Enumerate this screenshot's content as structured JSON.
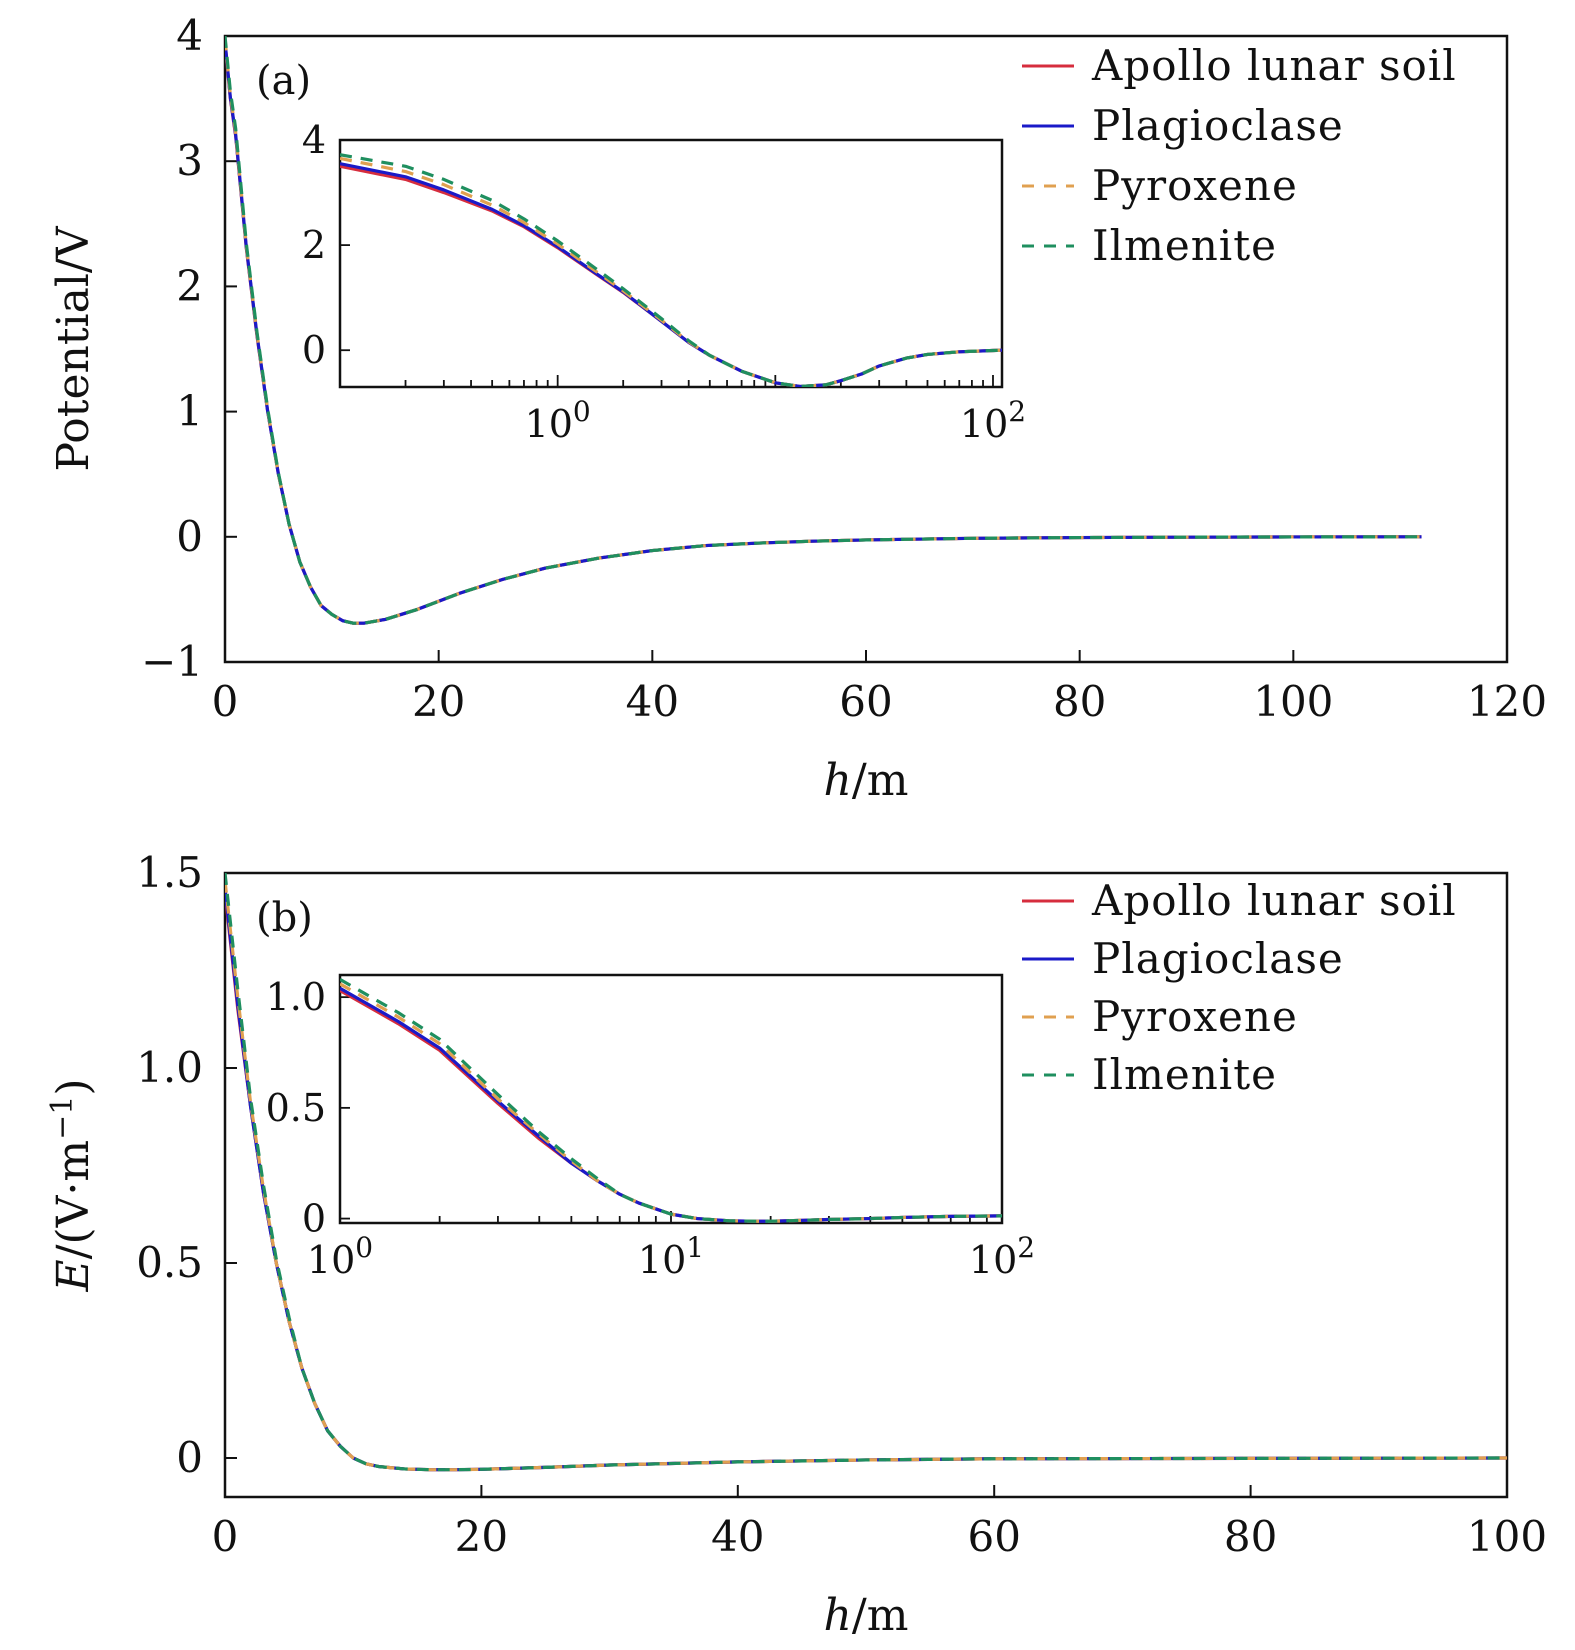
{
  "chart_data": [
    {
      "panel": "(a)",
      "type": "line",
      "xlabel_italic": "h",
      "xlabel_rest": "/m",
      "ylabel": "Potential/V",
      "xlim": [
        0,
        120
      ],
      "ylim": [
        -1,
        4
      ],
      "xticks": [
        0,
        20,
        40,
        60,
        80,
        100,
        120
      ],
      "yticks": [
        -1,
        0,
        1,
        2,
        3,
        4
      ],
      "xtick_labels": [
        "0",
        "20",
        "40",
        "60",
        "80",
        "100",
        "120"
      ],
      "ytick_labels": [
        "−1",
        "0",
        "1",
        "2",
        "3",
        "4"
      ],
      "legend_position": "top-right",
      "series": [
        {
          "name": "Apollo lunar soil",
          "color": "#d62d3d",
          "style": "solid",
          "x": [
            0,
            0.5,
            1,
            2,
            3,
            4,
            5,
            6,
            7,
            8,
            9,
            10,
            11,
            12,
            13,
            15,
            18,
            22,
            26,
            30,
            35,
            40,
            45,
            50,
            55,
            60,
            70,
            80,
            90,
            100,
            112
          ],
          "y": [
            3.95,
            3.5,
            3.2,
            2.3,
            1.6,
            1.0,
            0.5,
            0.1,
            -0.2,
            -0.4,
            -0.55,
            -0.62,
            -0.67,
            -0.69,
            -0.69,
            -0.66,
            -0.58,
            -0.45,
            -0.34,
            -0.25,
            -0.17,
            -0.11,
            -0.07,
            -0.05,
            -0.035,
            -0.025,
            -0.012,
            -0.006,
            -0.003,
            -0.001,
            0
          ]
        },
        {
          "name": "Plagioclase",
          "color": "#1a1ac8",
          "style": "solid",
          "x": [
            0,
            0.5,
            1,
            2,
            3,
            4,
            5,
            6,
            7,
            8,
            9,
            10,
            11,
            12,
            13,
            15,
            18,
            22,
            26,
            30,
            35,
            40,
            45,
            50,
            55,
            60,
            70,
            80,
            90,
            100,
            112
          ],
          "y": [
            3.96,
            3.51,
            3.21,
            2.31,
            1.61,
            1.0,
            0.5,
            0.1,
            -0.2,
            -0.4,
            -0.55,
            -0.62,
            -0.67,
            -0.69,
            -0.69,
            -0.66,
            -0.58,
            -0.45,
            -0.34,
            -0.25,
            -0.17,
            -0.11,
            -0.07,
            -0.05,
            -0.035,
            -0.025,
            -0.012,
            -0.006,
            -0.003,
            -0.001,
            0
          ]
        },
        {
          "name": "Pyroxene",
          "color": "#e0a050",
          "style": "dashed",
          "x": [
            0,
            0.5,
            1,
            2,
            3,
            4,
            5,
            6,
            7,
            8,
            9,
            10,
            11,
            12,
            13,
            15,
            18,
            22,
            26,
            30,
            35,
            40,
            45,
            50,
            55,
            60,
            70,
            80,
            90,
            100,
            112
          ],
          "y": [
            3.98,
            3.53,
            3.23,
            2.32,
            1.62,
            1.01,
            0.5,
            0.1,
            -0.2,
            -0.4,
            -0.55,
            -0.62,
            -0.67,
            -0.69,
            -0.69,
            -0.66,
            -0.58,
            -0.45,
            -0.34,
            -0.25,
            -0.17,
            -0.11,
            -0.07,
            -0.05,
            -0.035,
            -0.025,
            -0.012,
            -0.006,
            -0.003,
            -0.001,
            0
          ]
        },
        {
          "name": "Ilmenite",
          "color": "#1f8f5f",
          "style": "dashed",
          "x": [
            0,
            0.5,
            1,
            2,
            3,
            4,
            5,
            6,
            7,
            8,
            9,
            10,
            11,
            12,
            13,
            15,
            18,
            22,
            26,
            30,
            35,
            40,
            45,
            50,
            55,
            60,
            70,
            80,
            90,
            100,
            112
          ],
          "y": [
            4.0,
            3.56,
            3.26,
            2.34,
            1.63,
            1.02,
            0.51,
            0.1,
            -0.2,
            -0.4,
            -0.55,
            -0.62,
            -0.67,
            -0.69,
            -0.69,
            -0.66,
            -0.58,
            -0.45,
            -0.34,
            -0.25,
            -0.17,
            -0.11,
            -0.07,
            -0.05,
            -0.035,
            -0.025,
            -0.012,
            -0.006,
            -0.003,
            -0.001,
            0
          ]
        }
      ],
      "inset": {
        "xscale": "log",
        "xlim": [
          0.1,
          110
        ],
        "ylim": [
          -0.7,
          4
        ],
        "xticks": [
          1,
          100
        ],
        "xtick_base": [
          "10",
          "10"
        ],
        "xtick_exp": [
          "0",
          "2"
        ],
        "yticks": [
          0,
          2,
          4
        ],
        "ytick_labels": [
          "0",
          "2",
          "4"
        ],
        "series": [
          {
            "name": "Apollo lunar soil",
            "color": "#d62d3d",
            "style": "solid",
            "x": [
              0.1,
              0.2,
              0.3,
              0.5,
              0.7,
              1,
              1.5,
              2,
              3,
              4,
              5,
              7,
              10,
              13,
              17,
              20,
              25,
              30,
              40,
              50,
              70,
              100,
              110
            ],
            "y": [
              3.5,
              3.25,
              3.0,
              2.65,
              2.35,
              1.95,
              1.45,
              1.1,
              0.55,
              0.15,
              -0.1,
              -0.4,
              -0.62,
              -0.69,
              -0.66,
              -0.58,
              -0.45,
              -0.3,
              -0.15,
              -0.08,
              -0.03,
              -0.005,
              0
            ]
          },
          {
            "name": "Plagioclase",
            "color": "#1a1ac8",
            "style": "solid",
            "x": [
              0.1,
              0.2,
              0.3,
              0.5,
              0.7,
              1,
              1.5,
              2,
              3,
              4,
              5,
              7,
              10,
              13,
              17,
              20,
              25,
              30,
              40,
              50,
              70,
              100,
              110
            ],
            "y": [
              3.55,
              3.3,
              3.05,
              2.68,
              2.37,
              1.97,
              1.46,
              1.11,
              0.55,
              0.15,
              -0.1,
              -0.4,
              -0.62,
              -0.69,
              -0.66,
              -0.58,
              -0.45,
              -0.3,
              -0.15,
              -0.08,
              -0.03,
              -0.005,
              0
            ]
          },
          {
            "name": "Pyroxene",
            "color": "#e0a050",
            "style": "dashed",
            "x": [
              0.1,
              0.2,
              0.3,
              0.5,
              0.7,
              1,
              1.5,
              2,
              3,
              4,
              5,
              7,
              10,
              13,
              17,
              20,
              25,
              30,
              40,
              50,
              70,
              100,
              110
            ],
            "y": [
              3.65,
              3.4,
              3.15,
              2.76,
              2.43,
              2.02,
              1.5,
              1.13,
              0.57,
              0.16,
              -0.1,
              -0.4,
              -0.62,
              -0.69,
              -0.66,
              -0.58,
              -0.45,
              -0.3,
              -0.15,
              -0.08,
              -0.03,
              -0.005,
              0
            ]
          },
          {
            "name": "Ilmenite",
            "color": "#1f8f5f",
            "style": "dashed",
            "x": [
              0.1,
              0.2,
              0.3,
              0.5,
              0.7,
              1,
              1.5,
              2,
              3,
              4,
              5,
              7,
              10,
              13,
              17,
              20,
              25,
              30,
              40,
              50,
              70,
              100,
              110
            ],
            "y": [
              3.72,
              3.5,
              3.25,
              2.85,
              2.5,
              2.08,
              1.55,
              1.17,
              0.6,
              0.18,
              -0.1,
              -0.4,
              -0.62,
              -0.69,
              -0.66,
              -0.58,
              -0.45,
              -0.3,
              -0.15,
              -0.08,
              -0.03,
              -0.005,
              0
            ]
          }
        ]
      }
    },
    {
      "panel": "(b)",
      "type": "line",
      "xlabel_italic": "h",
      "xlabel_rest": "/m",
      "ylabel_italic": "E",
      "ylabel_rest": "/(V·m",
      "ylabel_sup": "−1",
      "ylabel_close": ")",
      "xlim": [
        0,
        100
      ],
      "ylim": [
        -0.1,
        1.5
      ],
      "xticks": [
        0,
        20,
        40,
        60,
        80,
        100
      ],
      "yticks": [
        0,
        0.5,
        1.0,
        1.5
      ],
      "xtick_labels": [
        "0",
        "20",
        "40",
        "60",
        "80",
        "100"
      ],
      "ytick_labels": [
        "0",
        "0.5",
        "1.0",
        "1.5"
      ],
      "legend_position": "top-right",
      "series": [
        {
          "name": "Apollo lunar soil",
          "color": "#d62d3d",
          "style": "solid",
          "x": [
            0,
            0.5,
            1,
            2,
            3,
            4,
            5,
            6,
            7,
            8,
            9,
            10,
            11,
            12,
            14,
            16,
            18,
            20,
            25,
            30,
            40,
            50,
            60,
            80,
            100
          ],
          "y": [
            1.45,
            1.3,
            1.15,
            0.9,
            0.68,
            0.5,
            0.35,
            0.23,
            0.14,
            0.07,
            0.03,
            0.0,
            -0.015,
            -0.022,
            -0.028,
            -0.03,
            -0.03,
            -0.029,
            -0.024,
            -0.018,
            -0.01,
            -0.005,
            -0.002,
            -0.001,
            0
          ]
        },
        {
          "name": "Plagioclase",
          "color": "#1a1ac8",
          "style": "solid",
          "x": [
            0,
            0.5,
            1,
            2,
            3,
            4,
            5,
            6,
            7,
            8,
            9,
            10,
            11,
            12,
            14,
            16,
            18,
            20,
            25,
            30,
            40,
            50,
            60,
            80,
            100
          ],
          "y": [
            1.46,
            1.31,
            1.16,
            0.9,
            0.68,
            0.5,
            0.35,
            0.23,
            0.14,
            0.07,
            0.03,
            0.0,
            -0.015,
            -0.022,
            -0.028,
            -0.03,
            -0.03,
            -0.029,
            -0.024,
            -0.018,
            -0.01,
            -0.005,
            -0.002,
            -0.001,
            0
          ]
        },
        {
          "name": "Pyroxene",
          "color": "#e0a050",
          "style": "dashed",
          "x": [
            0,
            0.5,
            1,
            2,
            3,
            4,
            5,
            6,
            7,
            8,
            9,
            10,
            11,
            12,
            14,
            16,
            18,
            20,
            25,
            30,
            40,
            50,
            60,
            80,
            100
          ],
          "y": [
            1.48,
            1.33,
            1.18,
            0.91,
            0.69,
            0.5,
            0.35,
            0.23,
            0.14,
            0.07,
            0.03,
            0.0,
            -0.015,
            -0.022,
            -0.028,
            -0.03,
            -0.03,
            -0.029,
            -0.024,
            -0.018,
            -0.01,
            -0.005,
            -0.002,
            -0.001,
            0
          ]
        },
        {
          "name": "Ilmenite",
          "color": "#1f8f5f",
          "style": "dashed",
          "x": [
            0,
            0.5,
            1,
            2,
            3,
            4,
            5,
            6,
            7,
            8,
            9,
            10,
            11,
            12,
            14,
            16,
            18,
            20,
            25,
            30,
            40,
            50,
            60,
            80,
            100
          ],
          "y": [
            1.5,
            1.35,
            1.2,
            0.92,
            0.7,
            0.51,
            0.36,
            0.23,
            0.14,
            0.07,
            0.03,
            0.0,
            -0.015,
            -0.022,
            -0.028,
            -0.03,
            -0.03,
            -0.029,
            -0.024,
            -0.018,
            -0.01,
            -0.005,
            -0.002,
            -0.001,
            0
          ]
        }
      ],
      "inset": {
        "xscale": "log",
        "xlim": [
          1,
          100
        ],
        "ylim": [
          -0.02,
          1.1
        ],
        "xticks": [
          1,
          10,
          100
        ],
        "xtick_base": [
          "10",
          "10",
          "10"
        ],
        "xtick_exp": [
          "0",
          "1",
          "2"
        ],
        "yticks": [
          0,
          0.5,
          1.0
        ],
        "ytick_labels": [
          "0",
          "0.5",
          "1.0"
        ],
        "series": [
          {
            "name": "Apollo lunar soil",
            "color": "#d62d3d",
            "style": "solid",
            "x": [
              1,
              1.5,
              2,
              3,
              4,
              5,
              6,
              7,
              8,
              10,
              12,
              15,
              18,
              20,
              25,
              30,
              40,
              50,
              70,
              100
            ],
            "y": [
              1.03,
              0.88,
              0.76,
              0.52,
              0.36,
              0.25,
              0.17,
              0.11,
              0.07,
              0.02,
              0.0,
              -0.01,
              -0.012,
              -0.012,
              -0.008,
              -0.004,
              0.0,
              0.005,
              0.01,
              0.012
            ]
          },
          {
            "name": "Plagioclase",
            "color": "#1a1ac8",
            "style": "solid",
            "x": [
              1,
              1.5,
              2,
              3,
              4,
              5,
              6,
              7,
              8,
              10,
              12,
              15,
              18,
              20,
              25,
              30,
              40,
              50,
              70,
              100
            ],
            "y": [
              1.04,
              0.89,
              0.77,
              0.53,
              0.37,
              0.25,
              0.17,
              0.11,
              0.07,
              0.02,
              0.0,
              -0.01,
              -0.012,
              -0.012,
              -0.008,
              -0.004,
              0.0,
              0.005,
              0.01,
              0.012
            ]
          },
          {
            "name": "Pyroxene",
            "color": "#e0a050",
            "style": "dashed",
            "x": [
              1,
              1.5,
              2,
              3,
              4,
              5,
              6,
              7,
              8,
              10,
              12,
              15,
              18,
              20,
              25,
              30,
              40,
              50,
              70,
              100
            ],
            "y": [
              1.06,
              0.91,
              0.79,
              0.54,
              0.38,
              0.26,
              0.17,
              0.11,
              0.07,
              0.02,
              0.0,
              -0.01,
              -0.012,
              -0.012,
              -0.008,
              -0.004,
              0.0,
              0.005,
              0.01,
              0.012
            ]
          },
          {
            "name": "Ilmenite",
            "color": "#1f8f5f",
            "style": "dashed",
            "x": [
              1,
              1.5,
              2,
              3,
              4,
              5,
              6,
              7,
              8,
              10,
              12,
              15,
              18,
              20,
              25,
              30,
              40,
              50,
              70,
              100
            ],
            "y": [
              1.08,
              0.93,
              0.81,
              0.56,
              0.39,
              0.27,
              0.18,
              0.11,
              0.07,
              0.02,
              0.0,
              -0.01,
              -0.012,
              -0.012,
              -0.008,
              -0.004,
              0.0,
              0.005,
              0.01,
              0.012
            ]
          }
        ]
      }
    }
  ]
}
